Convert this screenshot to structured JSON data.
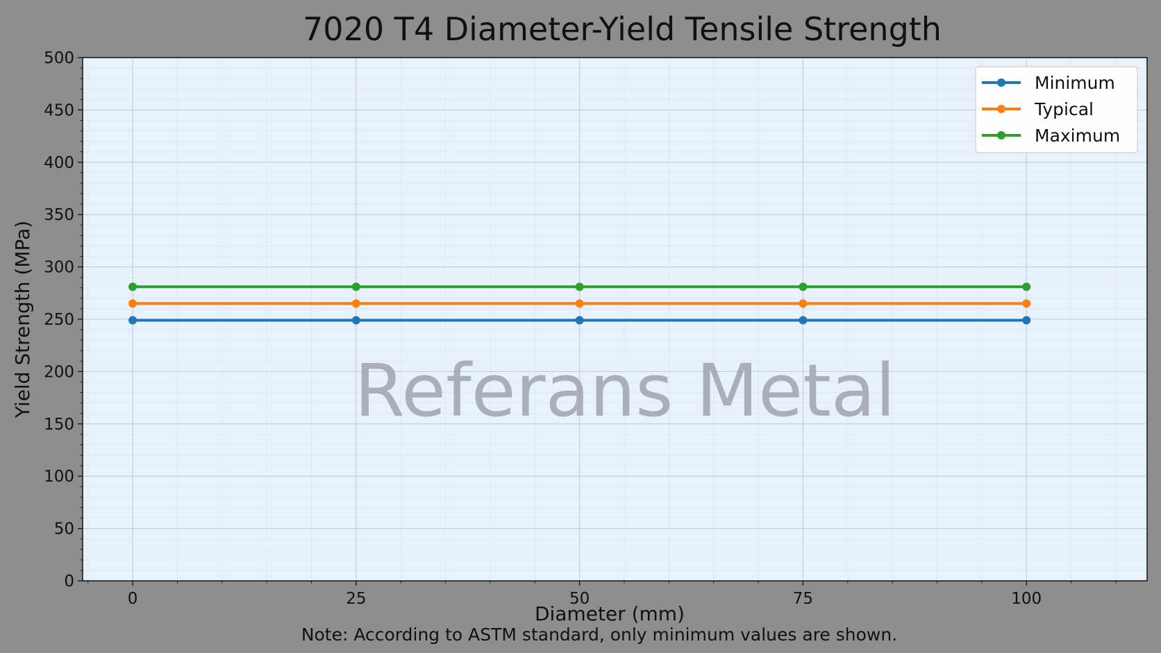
{
  "chart_data": {
    "type": "line",
    "title": "7020 T4 Diameter-Yield Tensile Strength",
    "xlabel": "Diameter (mm)",
    "ylabel": "Yield Strength (MPa)",
    "note": "Note: According to ASTM standard, only minimum values are shown.",
    "watermark": "Referans Metal",
    "x": [
      0,
      25,
      50,
      75,
      100
    ],
    "xlim": [
      -5.6,
      113.5
    ],
    "ylim": [
      0,
      500
    ],
    "xticks": [
      0,
      25,
      50,
      75,
      100
    ],
    "yticks": [
      0,
      50,
      100,
      150,
      200,
      250,
      300,
      350,
      400,
      450,
      500
    ],
    "grid": true,
    "legend_position": "top-right",
    "series": [
      {
        "name": "Minimum",
        "color": "#1f77b4",
        "values": [
          249,
          249,
          249,
          249,
          249
        ]
      },
      {
        "name": "Typical",
        "color": "#ff7f0e",
        "values": [
          265,
          265,
          265,
          265,
          265
        ]
      },
      {
        "name": "Maximum",
        "color": "#2ca02c",
        "values": [
          281,
          281,
          281,
          281,
          281
        ]
      }
    ],
    "colors": {
      "background": "#8e8e8e",
      "plot_area": "#e8f2fc",
      "grid_major": "#c4ccd6",
      "grid_minor": "#dde6f0"
    }
  }
}
